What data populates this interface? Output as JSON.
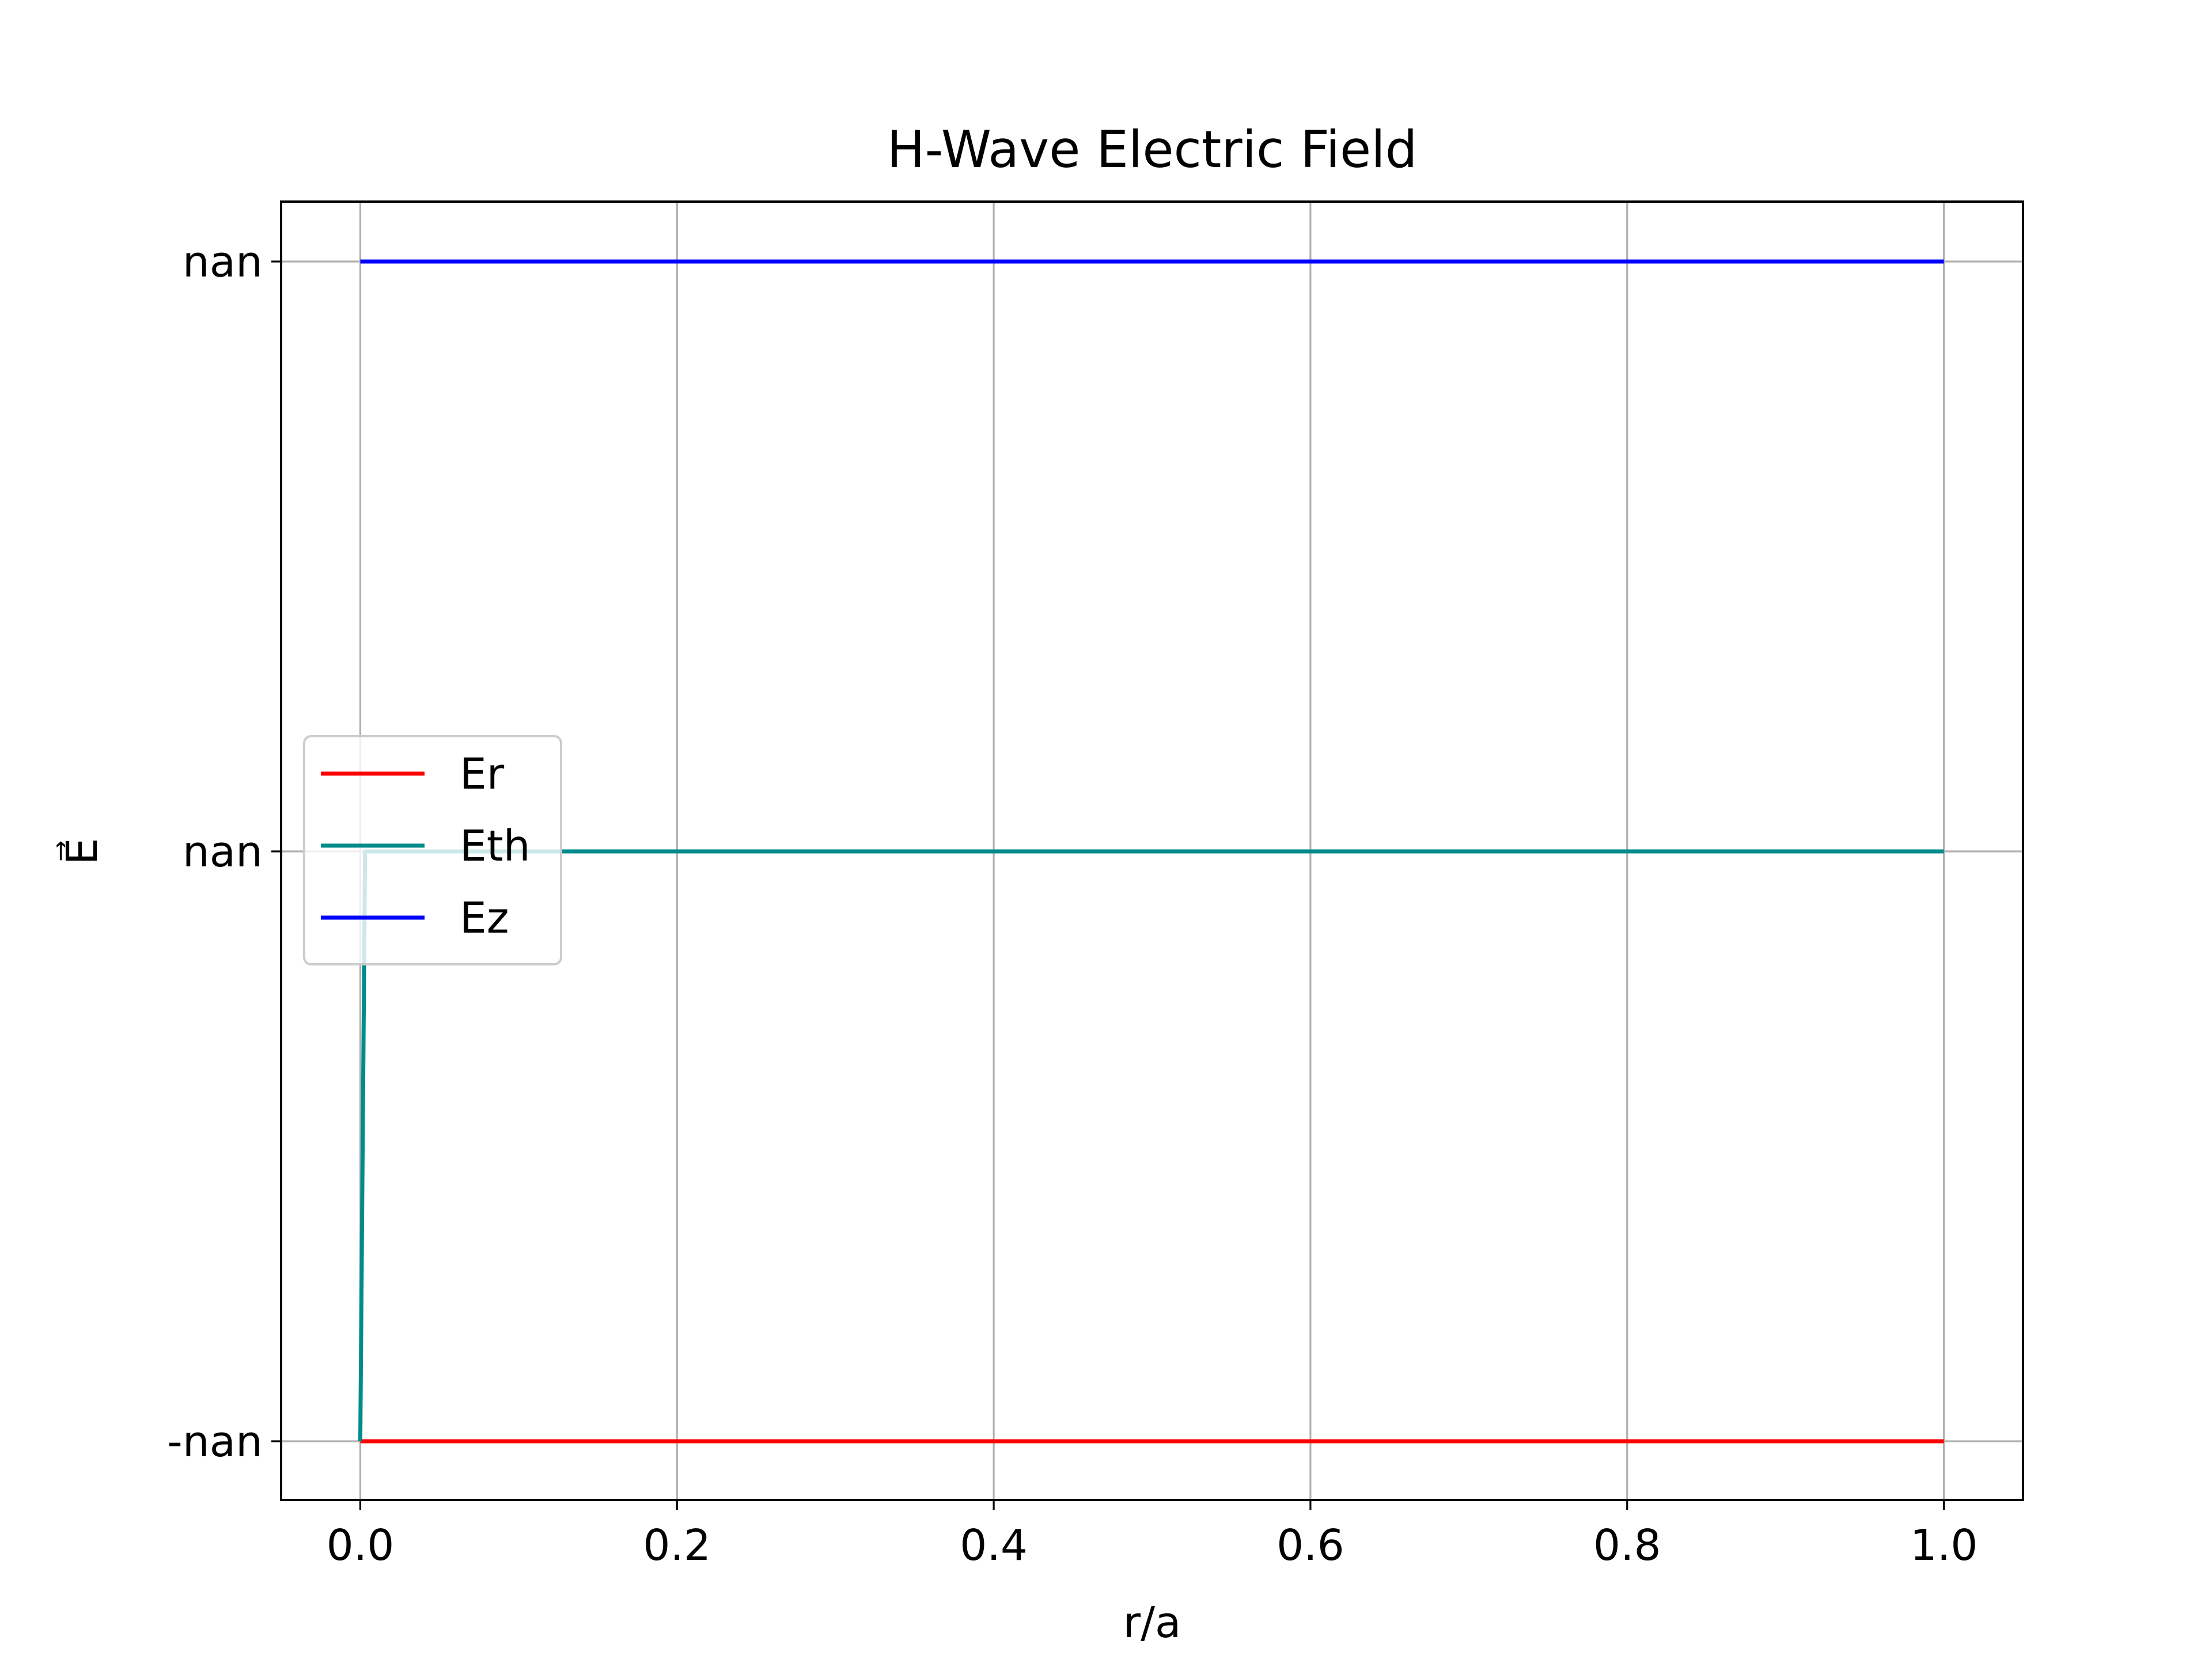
{
  "chart_data": {
    "type": "line",
    "title": "H-Wave Electric Field",
    "xlabel": "r/a",
    "ylabel": "E⃗",
    "xlim": [
      -0.05,
      1.05
    ],
    "x_ticks": [
      "0.0",
      "0.2",
      "0.4",
      "0.6",
      "0.8",
      "1.0"
    ],
    "x_tick_values": [
      0.0,
      0.2,
      0.4,
      0.6,
      0.8,
      1.0
    ],
    "y_tick_labels": [
      "-nan",
      "nan",
      "nan "
    ],
    "grid": true,
    "legend": {
      "placement": "center-left",
      "entries": [
        "Er",
        "Eth",
        "Ez"
      ]
    },
    "series": [
      {
        "name": "Er",
        "color": "#ff0000",
        "level": 0,
        "x": [
          0.0,
          1.0
        ],
        "y": [
          "-nan",
          "-nan"
        ]
      },
      {
        "name": "Eth",
        "color": "#008b8b",
        "level": 1,
        "x": [
          0.0,
          0.003,
          1.0
        ],
        "y": [
          "-nan",
          "nan",
          "nan"
        ]
      },
      {
        "name": "Ez",
        "color": "#0000ff",
        "level": 2,
        "x": [
          0.0,
          1.0
        ],
        "y": [
          "nan",
          "nan"
        ]
      }
    ]
  }
}
